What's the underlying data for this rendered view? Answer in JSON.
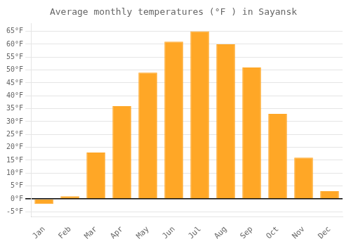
{
  "chart_data": {
    "type": "bar",
    "title": "Average monthly temperatures (°F ) in Sayansk",
    "categories": [
      "Jan",
      "Feb",
      "Mar",
      "Apr",
      "May",
      "Jun",
      "Jul",
      "Aug",
      "Sep",
      "Oct",
      "Nov",
      "Dec"
    ],
    "values": [
      -2,
      1,
      18,
      36,
      49,
      61,
      65,
      60,
      51,
      33,
      16,
      3
    ],
    "color": "#FFA726",
    "ylim": [
      -7,
      68
    ],
    "yticks": [
      {
        "value": -5,
        "label": "-5°F"
      },
      {
        "value": 0,
        "label": "0°F"
      },
      {
        "value": 5,
        "label": "5°F"
      },
      {
        "value": 10,
        "label": "10°F"
      },
      {
        "value": 15,
        "label": "15°F"
      },
      {
        "value": 20,
        "label": "20°F"
      },
      {
        "value": 25,
        "label": "25°F"
      },
      {
        "value": 30,
        "label": "30°F"
      },
      {
        "value": 35,
        "label": "35°F"
      },
      {
        "value": 40,
        "label": "40°F"
      },
      {
        "value": 45,
        "label": "45°F"
      },
      {
        "value": 50,
        "label": "50°F"
      },
      {
        "value": 55,
        "label": "55°F"
      },
      {
        "value": 60,
        "label": "60°F"
      },
      {
        "value": 65,
        "label": "65°F"
      }
    ],
    "grid": true
  }
}
